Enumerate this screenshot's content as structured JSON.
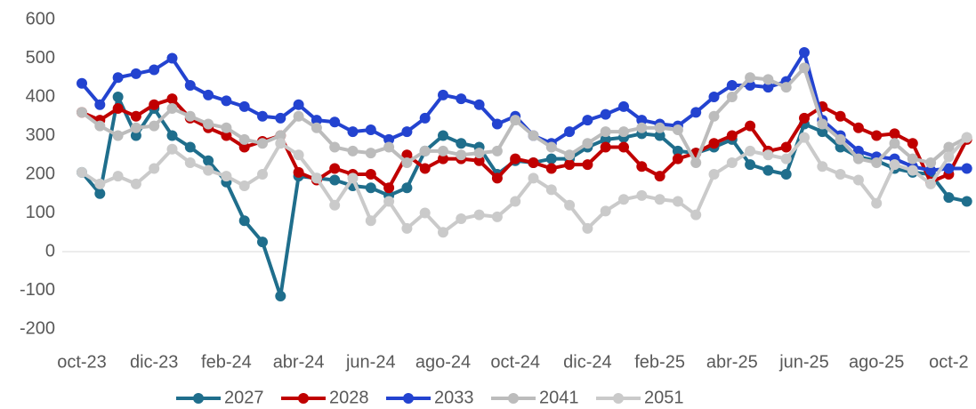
{
  "chart_data": {
    "type": "line",
    "categories": [
      "oct-23",
      null,
      null,
      null,
      "dic-23",
      null,
      null,
      null,
      "feb-24",
      null,
      null,
      null,
      "abr-24",
      null,
      null,
      null,
      "jun-24",
      null,
      null,
      null,
      "ago-24",
      null,
      null,
      null,
      "oct-24",
      null,
      null,
      null,
      "dic-24",
      null,
      null,
      null,
      "feb-25",
      null,
      null,
      null,
      "abr-25",
      null,
      null,
      null,
      "jun-25",
      null,
      null,
      null,
      "ago-25",
      null,
      null,
      null,
      "oct-2",
      null
    ],
    "series": [
      {
        "name": "2027",
        "color": "#1f6e8c",
        "values": [
          205,
          150,
          400,
          300,
          370,
          300,
          270,
          235,
          180,
          80,
          25,
          -115,
          195,
          190,
          185,
          170,
          165,
          145,
          165,
          260,
          300,
          280,
          270,
          200,
          235,
          230,
          240,
          240,
          270,
          290,
          295,
          305,
          300,
          260,
          255,
          270,
          290,
          225,
          210,
          200,
          330,
          310,
          270,
          245,
          235,
          215,
          205,
          200,
          140,
          130
        ]
      },
      {
        "name": "2028",
        "color": "#c00000",
        "values": [
          360,
          340,
          370,
          350,
          380,
          395,
          345,
          320,
          300,
          270,
          285,
          300,
          205,
          185,
          215,
          200,
          200,
          165,
          250,
          215,
          240,
          240,
          235,
          190,
          240,
          230,
          215,
          225,
          225,
          270,
          270,
          220,
          195,
          240,
          255,
          280,
          300,
          325,
          260,
          270,
          345,
          375,
          350,
          320,
          300,
          305,
          280,
          180,
          200,
          290
        ]
      },
      {
        "name": "2033",
        "color": "#2343d0",
        "values": [
          435,
          380,
          450,
          460,
          470,
          500,
          430,
          405,
          390,
          375,
          350,
          345,
          380,
          340,
          335,
          310,
          315,
          290,
          310,
          345,
          405,
          395,
          380,
          330,
          350,
          300,
          280,
          310,
          340,
          355,
          375,
          340,
          330,
          325,
          360,
          400,
          430,
          430,
          425,
          440,
          515,
          340,
          300,
          260,
          245,
          240,
          220,
          210,
          215,
          215
        ]
      },
      {
        "name": "2041",
        "color": "#bcbcbc",
        "values": [
          360,
          325,
          300,
          320,
          325,
          370,
          350,
          330,
          320,
          290,
          280,
          300,
          350,
          320,
          270,
          260,
          255,
          270,
          230,
          260,
          260,
          250,
          255,
          260,
          340,
          300,
          270,
          250,
          280,
          310,
          310,
          320,
          320,
          315,
          230,
          350,
          400,
          450,
          445,
          425,
          475,
          330,
          290,
          240,
          230,
          280,
          240,
          230,
          270,
          295
        ]
      },
      {
        "name": "2051",
        "color": "#cacaca",
        "values": [
          205,
          175,
          195,
          175,
          215,
          265,
          230,
          210,
          195,
          170,
          200,
          280,
          250,
          190,
          120,
          190,
          80,
          130,
          60,
          100,
          50,
          85,
          95,
          90,
          130,
          190,
          160,
          120,
          60,
          105,
          135,
          145,
          135,
          130,
          95,
          200,
          230,
          260,
          250,
          240,
          295,
          220,
          200,
          185,
          125,
          225,
          210,
          175,
          245,
          295
        ]
      }
    ],
    "ylim": [
      -200,
      600
    ],
    "yticks": [
      -200,
      -100,
      0,
      100,
      200,
      300,
      400,
      500,
      600
    ],
    "legend": "bottom"
  }
}
